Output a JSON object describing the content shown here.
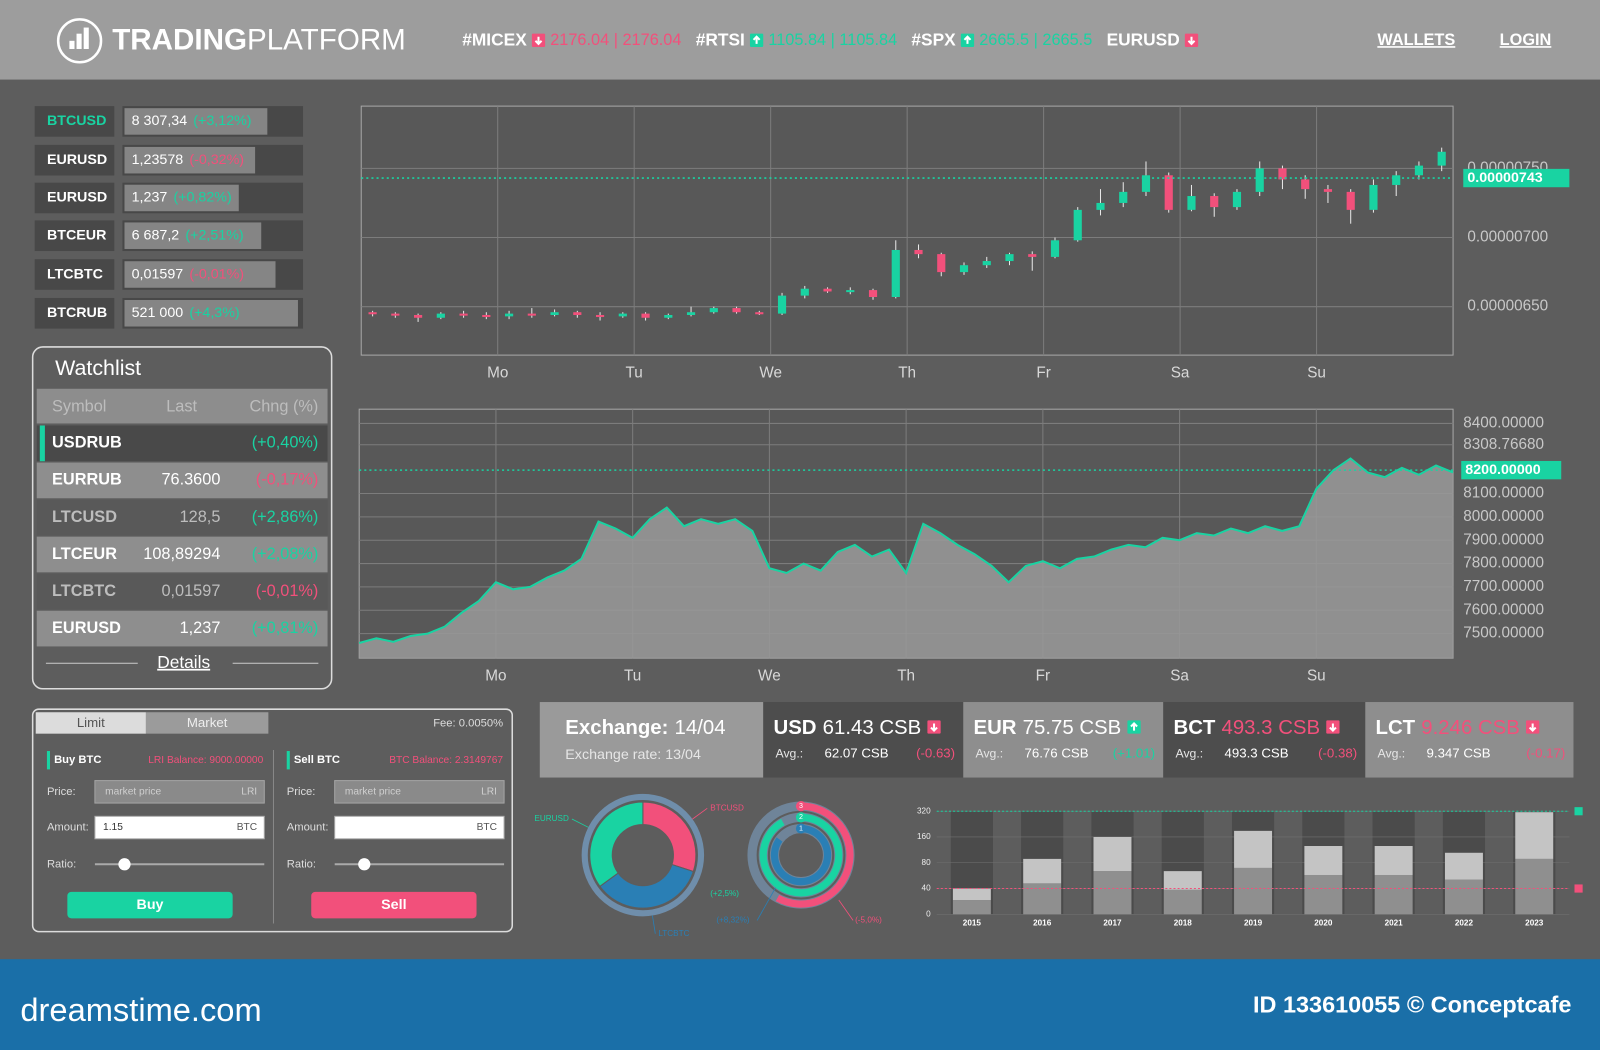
{
  "header": {
    "logo_bold": "TRADING",
    "logo_light": "PLATFORM",
    "tickers": [
      {
        "symbol": "#MICEX",
        "quote": "2176.04 | 2176.04",
        "direction": "down"
      },
      {
        "symbol": "#RTSI",
        "quote": "1105.84 | 1105.84",
        "direction": "up"
      },
      {
        "symbol": "#SPX",
        "quote": "2665.5 | 2665.5",
        "direction": "up"
      },
      {
        "symbol": "EURUSD",
        "direction": "down"
      }
    ],
    "nav": [
      "WALLETS",
      "LOGIN"
    ]
  },
  "pairs": [
    {
      "symbol": "BTCUSD",
      "price": "8 307,34",
      "change": "(+3,12%)",
      "active": true
    },
    {
      "symbol": "EURUSD",
      "price": "1,23578",
      "change": "(-0,32%)"
    },
    {
      "symbol": "EURUSD",
      "price": "1,237",
      "change": "(+0,82%)"
    },
    {
      "symbol": "BTCEUR",
      "price": "6 687,2",
      "change": "(+2,51%)"
    },
    {
      "symbol": "LTCBTC",
      "price": "0,01597",
      "change": "(-0,01%)"
    },
    {
      "symbol": "BTCRUB",
      "price": "521 000",
      "change": "(+4,3%)"
    }
  ],
  "watchlist": {
    "title": "Watchlist",
    "columns": [
      "Symbol",
      "Last",
      "Chng (%)"
    ],
    "rows": [
      [
        "USDRUB",
        null,
        "(+0,40%)"
      ],
      [
        "EURRUB",
        "76.3600",
        "(-0,17%)"
      ],
      [
        "LTCUSD",
        "128,5",
        "(+2,86%)"
      ],
      [
        "LTCEUR",
        "108,89294",
        "(+2,08%)"
      ],
      [
        "LTCBTC",
        "0,01597",
        "(-0,01%)"
      ],
      [
        "EURUSD",
        "1,237",
        "(+0,81%)"
      ]
    ],
    "details": "Details"
  },
  "order": {
    "tabs": [
      "Limit",
      "Market"
    ],
    "fee": "Fee: 0.0050%",
    "buy": {
      "title": "Buy BTC",
      "balance": "LRI Balance: 9000.00000",
      "price_label": "Price:",
      "price_placeholder": "market price",
      "price_unit": "LRI",
      "amount_label": "Amount:",
      "amount": "1.15",
      "amount_unit": "BTC",
      "ratio_label": "Ratio:",
      "button": "Buy"
    },
    "sell": {
      "title": "Sell BTC",
      "balance": "BTC Balance: 2.3149767",
      "price_label": "Price:",
      "price_placeholder": "market price",
      "price_unit": "LRI",
      "amount_label": "Amount:",
      "amount_unit": "BTC",
      "ratio_label": "Ratio:",
      "button": "Sell"
    }
  },
  "exchange": {
    "title": "Exchange:",
    "date": "14/04",
    "rate": "Exchange rate: 13/04",
    "cards": [
      {
        "code": "USD",
        "price": "61.43 CSB",
        "price_color": "#ffffff",
        "direction": "down",
        "avg_label": "Avg.:",
        "avg": "62.07 CSB",
        "change": "(-0.63)"
      },
      {
        "code": "EUR",
        "price": "75.75 CSB",
        "price_color": "#ffffff",
        "direction": "up",
        "avg_label": "Avg.:",
        "avg": "76.76 CSB",
        "change": "(+1.01)"
      },
      {
        "code": "BCT",
        "price": "493.3 CSB",
        "price_color": "#f2507b",
        "direction": "down",
        "avg_label": "Avg.:",
        "avg": "493.3 CSB",
        "change": "(-0.38)"
      },
      {
        "code": "LCT",
        "price": "9.246 CSB",
        "price_color": "#f2507b",
        "direction": "down",
        "avg_label": "Avg.:",
        "avg": "9.347 CSB",
        "change": "(-0.17)"
      }
    ]
  },
  "footer": {
    "site": "dreamstime.com",
    "credit": "ID 133610055 © Conceptcafe"
  },
  "chart_data": [
    {
      "type": "candlestick",
      "up_color": "#19d3a2",
      "down_color": "#f2507b",
      "x": [
        0.5,
        1.5,
        2.5,
        3.5,
        4.5,
        5.5,
        6.5,
        7.5,
        8.5,
        9.5,
        10.5,
        11.5,
        12.5,
        13.5,
        14.5,
        15.5,
        16.5,
        17.5,
        18.5,
        19.5,
        20.5,
        21.5,
        22.5,
        23.5,
        24.5,
        25.5,
        26.5,
        27.5,
        28.5,
        29.5,
        30.5,
        31.5,
        32.5,
        33.5,
        34.5,
        35.5,
        36.5,
        37.5,
        38.5,
        39.5,
        40.5,
        41.5,
        42.5,
        43.5,
        44.5,
        45.5,
        46.5,
        47.5
      ],
      "open": [
        6.46e-06,
        6.45e-06,
        6.44e-06,
        6.42e-06,
        6.45e-06,
        6.44e-06,
        6.43e-06,
        6.45e-06,
        6.44e-06,
        6.46e-06,
        6.44e-06,
        6.43e-06,
        6.45e-06,
        6.42e-06,
        6.44e-06,
        6.46e-06,
        6.49e-06,
        6.46e-06,
        6.45e-06,
        6.58e-06,
        6.63e-06,
        6.61e-06,
        6.62e-06,
        6.57e-06,
        6.91e-06,
        6.88e-06,
        6.75e-06,
        6.8e-06,
        6.83e-06,
        6.88e-06,
        6.86e-06,
        6.98e-06,
        7.2e-06,
        7.25e-06,
        7.33e-06,
        7.45e-06,
        7.2e-06,
        7.3e-06,
        7.22e-06,
        7.33e-06,
        7.5e-06,
        7.42e-06,
        7.35e-06,
        7.33e-06,
        7.2e-06,
        7.38e-06,
        7.45e-06,
        7.52e-06
      ],
      "close": [
        6.45e-06,
        6.44e-06,
        6.42e-06,
        6.45e-06,
        6.44e-06,
        6.43e-06,
        6.45e-06,
        6.44e-06,
        6.46e-06,
        6.44e-06,
        6.43e-06,
        6.45e-06,
        6.42e-06,
        6.44e-06,
        6.46e-06,
        6.49e-06,
        6.46e-06,
        6.45e-06,
        6.58e-06,
        6.63e-06,
        6.61e-06,
        6.62e-06,
        6.57e-06,
        6.91e-06,
        6.88e-06,
        6.75e-06,
        6.8e-06,
        6.83e-06,
        6.88e-06,
        6.86e-06,
        6.98e-06,
        7.2e-06,
        7.25e-06,
        7.33e-06,
        7.45e-06,
        7.2e-06,
        7.3e-06,
        7.22e-06,
        7.33e-06,
        7.5e-06,
        7.42e-06,
        7.35e-06,
        7.33e-06,
        7.2e-06,
        7.38e-06,
        7.45e-06,
        7.52e-06,
        7.62e-06
      ],
      "high": [
        6.47e-06,
        6.46e-06,
        6.45e-06,
        6.46e-06,
        6.47e-06,
        6.46e-06,
        6.47e-06,
        6.49e-06,
        6.48e-06,
        6.47e-06,
        6.46e-06,
        6.46e-06,
        6.46e-06,
        6.45e-06,
        6.5e-06,
        6.5e-06,
        6.5e-06,
        6.47e-06,
        6.6e-06,
        6.65e-06,
        6.64e-06,
        6.64e-06,
        6.63e-06,
        6.98e-06,
        6.95e-06,
        6.89e-06,
        6.82e-06,
        6.86e-06,
        6.89e-06,
        6.9e-06,
        7e-06,
        7.22e-06,
        7.35e-06,
        7.4e-06,
        7.55e-06,
        7.47e-06,
        7.38e-06,
        7.32e-06,
        7.35e-06,
        7.55e-06,
        7.52e-06,
        7.45e-06,
        7.38e-06,
        7.35e-06,
        7.42e-06,
        7.48e-06,
        7.55e-06,
        7.65e-06
      ],
      "low": [
        6.43e-06,
        6.42e-06,
        6.39e-06,
        6.41e-06,
        6.42e-06,
        6.41e-06,
        6.41e-06,
        6.42e-06,
        6.43e-06,
        6.42e-06,
        6.4e-06,
        6.42e-06,
        6.4e-06,
        6.41e-06,
        6.43e-06,
        6.45e-06,
        6.45e-06,
        6.44e-06,
        6.44e-06,
        6.56e-06,
        6.6e-06,
        6.59e-06,
        6.55e-06,
        6.56e-06,
        6.85e-06,
        6.72e-06,
        6.73e-06,
        6.78e-06,
        6.8e-06,
        6.76e-06,
        6.85e-06,
        6.97e-06,
        7.16e-06,
        7.22e-06,
        7.3e-06,
        7.18e-06,
        7.19e-06,
        7.15e-06,
        7.2e-06,
        7.3e-06,
        7.35e-06,
        7.28e-06,
        7.25e-06,
        7.1e-06,
        7.18e-06,
        7.3e-06,
        7.42e-06,
        7.48e-06
      ],
      "xlim": [
        0,
        48
      ],
      "xticks": [
        {
          "value": 6,
          "label": "Mo"
        },
        {
          "value": 12,
          "label": "Tu"
        },
        {
          "value": 18,
          "label": "We"
        },
        {
          "value": 24,
          "label": "Th"
        },
        {
          "value": 30,
          "label": "Fr"
        },
        {
          "value": 36,
          "label": "Sa"
        },
        {
          "value": 42,
          "label": "Su"
        }
      ],
      "ylim": [
        6.15e-06,
        7.95e-06
      ],
      "yticks": [
        {
          "value": 6.5e-06,
          "label": "0.00000650"
        },
        {
          "value": 7e-06,
          "label": "0.00000700"
        },
        {
          "value": 7.5e-06,
          "label": "0.00000750"
        }
      ],
      "price_line": {
        "value": 7.43e-06,
        "label": "0.00000743"
      },
      "grid": true
    },
    {
      "type": "area",
      "color": "#19d3a2",
      "fill": "#9a9a9a",
      "x": [
        0,
        1,
        2,
        3,
        4,
        5,
        6,
        7,
        8,
        9,
        10,
        11,
        12,
        13,
        14,
        15,
        16,
        17,
        18,
        19,
        20,
        21,
        22,
        23,
        24,
        25,
        26,
        27,
        28,
        29,
        30,
        31,
        32,
        33,
        34,
        35,
        36,
        37,
        38,
        39,
        40,
        41,
        42,
        43,
        44,
        45,
        46,
        47,
        48,
        49,
        50,
        51,
        52,
        53,
        54,
        55,
        56,
        57,
        58,
        59,
        60,
        61,
        62,
        63,
        64
      ],
      "values": [
        7460,
        7480,
        7465,
        7490,
        7500,
        7530,
        7590,
        7640,
        7720,
        7690,
        7700,
        7740,
        7770,
        7820,
        7980,
        7950,
        7910,
        7990,
        8040,
        7960,
        7990,
        7970,
        7990,
        7940,
        7780,
        7760,
        7800,
        7770,
        7850,
        7880,
        7830,
        7860,
        7760,
        7970,
        7930,
        7880,
        7840,
        7790,
        7720,
        7790,
        7810,
        7780,
        7820,
        7830,
        7860,
        7880,
        7870,
        7910,
        7900,
        7930,
        7920,
        7950,
        7930,
        7960,
        7940,
        7960,
        8120,
        8200,
        8250,
        8190,
        8170,
        8210,
        8180,
        8220,
        8190
      ],
      "xlim": [
        0,
        64
      ],
      "xticks": [
        {
          "value": 8,
          "label": "Mo"
        },
        {
          "value": 16,
          "label": "Tu"
        },
        {
          "value": 24,
          "label": "We"
        },
        {
          "value": 32,
          "label": "Th"
        },
        {
          "value": 40,
          "label": "Fr"
        },
        {
          "value": 48,
          "label": "Sa"
        },
        {
          "value": 56,
          "label": "Su"
        }
      ],
      "ylim": [
        7395,
        8461
      ],
      "yticks": [
        {
          "value": 8400,
          "label": "8400.00000"
        },
        {
          "value": 8308.7668,
          "label": "8308.76680"
        },
        {
          "value": 8100,
          "label": "8100.00000"
        },
        {
          "value": 8000,
          "label": "8000.00000"
        },
        {
          "value": 7900,
          "label": "7900.00000"
        },
        {
          "value": 7800,
          "label": "7800.00000"
        },
        {
          "value": 7700,
          "label": "7700.00000"
        },
        {
          "value": 7600,
          "label": "7600.00000"
        },
        {
          "value": 7500,
          "label": "7500.00000"
        }
      ],
      "price_line": {
        "value": 8200,
        "label": "8200.00000"
      },
      "grid": true
    },
    {
      "type": "donut",
      "categories": [
        "BTCUSD",
        "LTCBTC",
        "EURUSD"
      ],
      "values": [
        30,
        35,
        35
      ],
      "colors": [
        "#f2507b",
        "#2a7fb5",
        "#19d3a2"
      ],
      "annotations": [
        "(+2,5%)"
      ]
    },
    {
      "type": "radial",
      "categories": [
        "3",
        "2",
        "1"
      ],
      "values": [
        58,
        92,
        85
      ],
      "colors": [
        "#f2507b",
        "#19d3a2",
        "#2a7fb5"
      ],
      "rlim": [
        0,
        100
      ],
      "annotations": [
        "(+8,32%)",
        "(-5,0%)"
      ]
    },
    {
      "type": "stacked_bar",
      "categories": [
        "2015",
        "2016",
        "2017",
        "2018",
        "2019",
        "2020",
        "2021",
        "2022",
        "2023"
      ],
      "series": [
        {
          "color": "#8f8f8f",
          "values": [
            22,
            48,
            67,
            38,
            72,
            61,
            61,
            54,
            92
          ]
        },
        {
          "color": "#c4c4c4",
          "values": [
            18,
            44,
            93,
            29,
            126,
            71,
            71,
            57,
            222
          ]
        }
      ],
      "yscale": "piecewise",
      "ylim": [
        0,
        320
      ],
      "yticks": [
        0,
        40,
        80,
        160,
        320
      ],
      "reference_lines": [
        {
          "value": 40,
          "color": "#f2507b"
        },
        {
          "value": 320,
          "color": "#19d3a2"
        }
      ],
      "grid": true
    }
  ]
}
